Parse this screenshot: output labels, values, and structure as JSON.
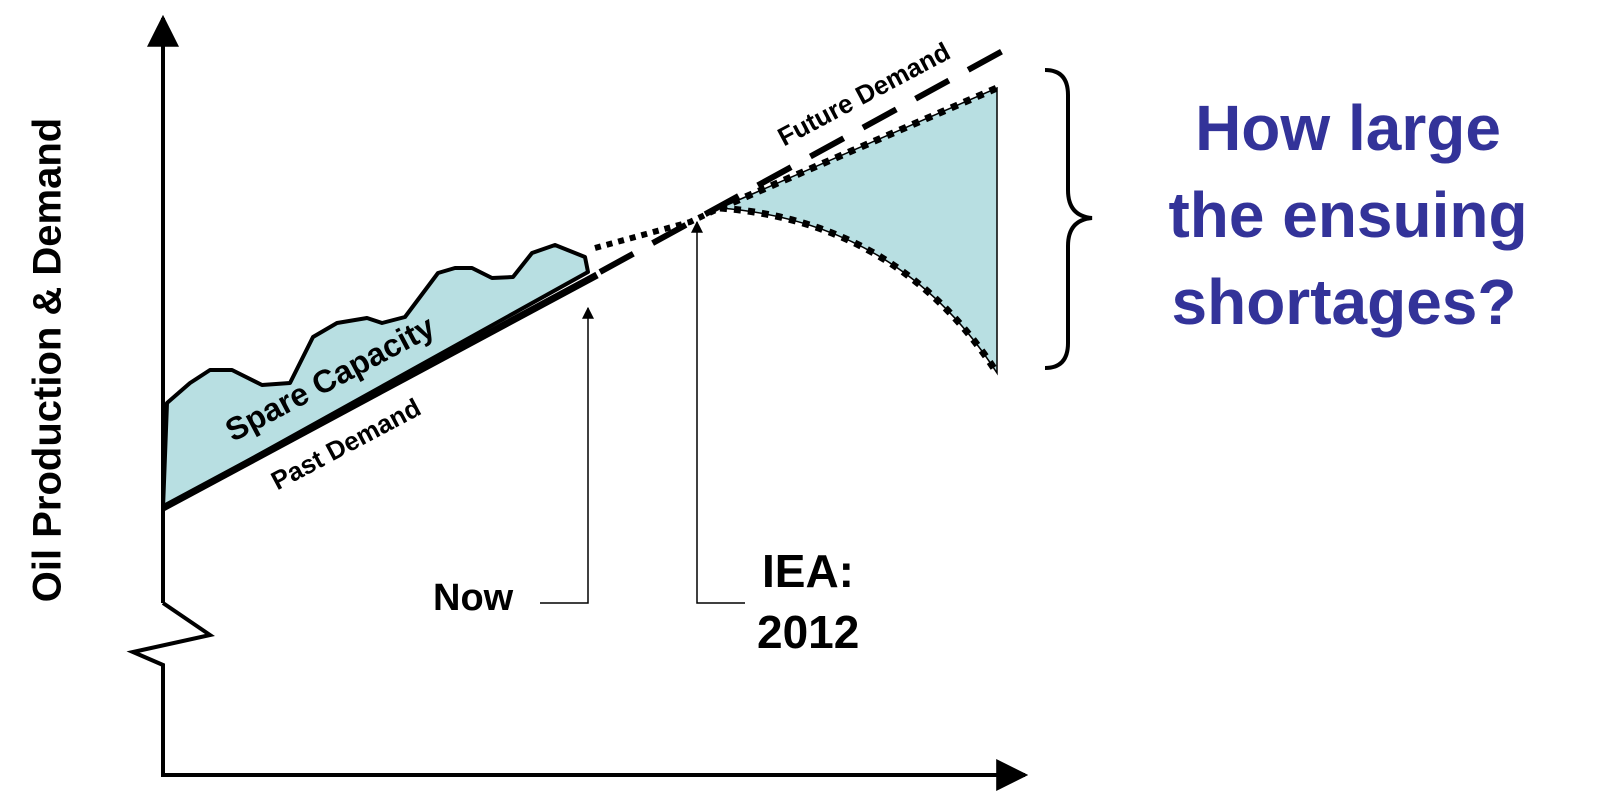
{
  "y_axis_label": "Oil Production & Demand",
  "labels": {
    "spare_capacity": "Spare Capacity",
    "past_demand": "Past Demand",
    "future_demand": "Future Demand",
    "now": "Now",
    "iea": [
      "IEA:",
      "2012"
    ]
  },
  "question": [
    "How large",
    "the ensuing",
    "shortages?"
  ]
}
